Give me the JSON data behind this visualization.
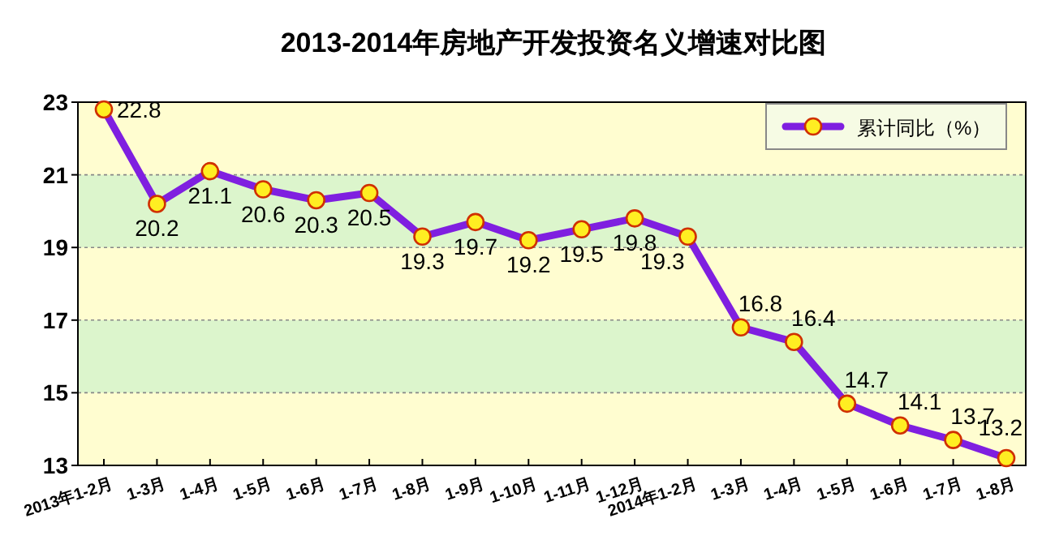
{
  "chart_data": {
    "type": "line",
    "title": "2013-2014年房地产开发投资名义增速对比图",
    "categories": [
      "2013年1-2月",
      "1-3月",
      "1-4月",
      "1-5月",
      "1-6月",
      "1-7月",
      "1-8月",
      "1-9月",
      "1-10月",
      "1-11月",
      "1-12月",
      "2014年1-2月",
      "1-3月",
      "1-4月",
      "1-5月",
      "1-6月",
      "1-7月",
      "1-8月"
    ],
    "series": [
      {
        "name": "累计同比（%）",
        "color": "#7f1fe0",
        "values": [
          22.8,
          20.2,
          21.1,
          20.6,
          20.3,
          20.5,
          19.3,
          19.7,
          19.2,
          19.5,
          19.8,
          19.3,
          16.8,
          16.4,
          14.7,
          14.1,
          13.7,
          13.2
        ]
      }
    ],
    "ylim": [
      13,
      23
    ],
    "yticks": [
      13,
      15,
      17,
      19,
      21,
      23
    ],
    "grid": "y",
    "legend": "top right",
    "marker": "circle",
    "line_style": "solid",
    "data_labels": true,
    "bands": [
      {
        "axis": "y",
        "from": 19,
        "to": 21,
        "color": "#dcf5cc"
      },
      {
        "axis": "y",
        "from": 15,
        "to": 17,
        "color": "#dcf5cc"
      }
    ]
  }
}
